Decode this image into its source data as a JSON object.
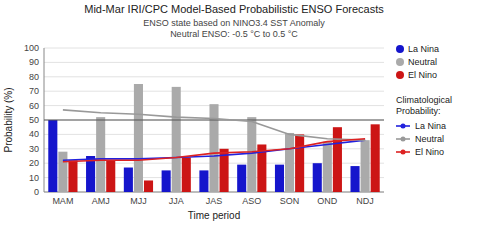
{
  "chart_data": {
    "type": "bar",
    "title": "Mid-Mar IRI/CPC Model-Based Probabilistic ENSO Forecasts",
    "subtitle": [
      "ENSO state based on NINO3.4 SST Anomaly",
      "Neutral ENSO: -0.5 °C to 0.5 °C"
    ],
    "xlabel": "Time period",
    "ylabel": "Probability (%)",
    "categories": [
      "MAM",
      "AMJ",
      "MJJ",
      "JJA",
      "JAS",
      "ASO",
      "SON",
      "OND",
      "NDJ"
    ],
    "series": [
      {
        "name": "La Nina",
        "type": "bar",
        "color": "#1515cc",
        "values": [
          50,
          25,
          17,
          15,
          15,
          19,
          19,
          20,
          18
        ]
      },
      {
        "name": "Neutral",
        "type": "bar",
        "color": "#aaaaaa",
        "values": [
          28,
          52,
          75,
          73,
          61,
          52,
          41,
          35,
          36
        ]
      },
      {
        "name": "El Nino",
        "type": "bar",
        "color": "#cc1515",
        "values": [
          22,
          22,
          8,
          24,
          30,
          33,
          40,
          45,
          47
        ]
      },
      {
        "name": "La Nina",
        "type": "line",
        "color": "#2222dd",
        "values": [
          22,
          23,
          23,
          24,
          25,
          27,
          30,
          33,
          36
        ]
      },
      {
        "name": "Neutral",
        "type": "line",
        "color": "#999999",
        "values": [
          57,
          55,
          54,
          52,
          51,
          49,
          40,
          37,
          36
        ]
      },
      {
        "name": "El Nino",
        "type": "line",
        "color": "#dd2222",
        "values": [
          21,
          22,
          22,
          24,
          27,
          28,
          30,
          35,
          37
        ]
      }
    ],
    "legend_title": "Climatological\nProbability:",
    "reference_line": 50,
    "ylim": [
      0,
      100
    ],
    "yticks": [
      0,
      10,
      20,
      30,
      40,
      50,
      60,
      70,
      80,
      90,
      100
    ],
    "grid": true,
    "legend": "right"
  }
}
